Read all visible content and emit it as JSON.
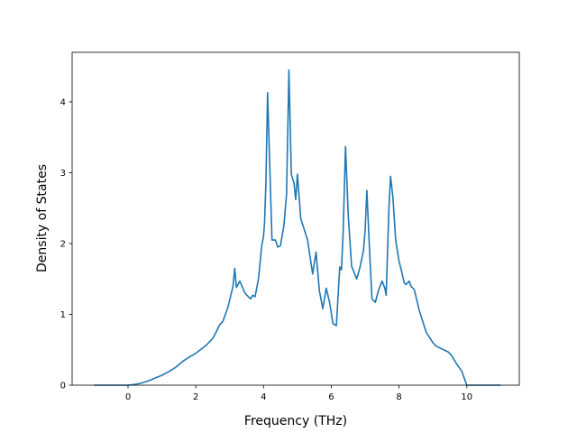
{
  "chart_data": {
    "type": "line",
    "xlabel": "Frequency (THz)",
    "ylabel": "Density of States",
    "xlim": [
      -1.65,
      11.55
    ],
    "ylim": [
      0,
      4.7
    ],
    "xticks": [
      0,
      2,
      4,
      6,
      8,
      10
    ],
    "yticks": [
      0,
      1,
      2,
      3,
      4
    ],
    "grid": false,
    "line_color": "#1f77b4",
    "series": [
      {
        "x": [
          -1.0,
          -0.5,
          0.0,
          0.2,
          0.4,
          0.6,
          0.8,
          1.0,
          1.2,
          1.4,
          1.6,
          1.75,
          2.0,
          2.3,
          2.5,
          2.6,
          2.7,
          2.8,
          2.95,
          3.05,
          3.1,
          3.15,
          3.2,
          3.3,
          3.45,
          3.55,
          3.62,
          3.68,
          3.75,
          3.85,
          3.95,
          4.0,
          4.03,
          4.07,
          4.12,
          4.25,
          4.35,
          4.42,
          4.5,
          4.6,
          4.68,
          4.75,
          4.82,
          4.9,
          4.95,
          5.0,
          5.1,
          5.3,
          5.45,
          5.55,
          5.65,
          5.75,
          5.85,
          5.95,
          6.05,
          6.15,
          6.25,
          6.3,
          6.35,
          6.42,
          6.5,
          6.6,
          6.75,
          6.85,
          6.95,
          7.0,
          7.05,
          7.12,
          7.2,
          7.3,
          7.4,
          7.5,
          7.58,
          7.62,
          7.7,
          7.75,
          7.82,
          7.9,
          8.0,
          8.08,
          8.15,
          8.2,
          8.3,
          8.35,
          8.45,
          8.6,
          8.8,
          9.0,
          9.1,
          9.45,
          9.55,
          9.7,
          9.85,
          10.0,
          10.1,
          11.0
        ],
        "y": [
          0.0,
          0.0,
          0.0,
          0.01,
          0.03,
          0.06,
          0.1,
          0.14,
          0.19,
          0.25,
          0.33,
          0.38,
          0.45,
          0.56,
          0.66,
          0.75,
          0.85,
          0.9,
          1.1,
          1.3,
          1.4,
          1.65,
          1.38,
          1.47,
          1.3,
          1.25,
          1.22,
          1.27,
          1.25,
          1.5,
          1.98,
          2.1,
          2.3,
          2.85,
          4.13,
          2.05,
          2.05,
          1.95,
          1.97,
          2.25,
          2.7,
          4.45,
          2.98,
          2.85,
          2.62,
          2.98,
          2.35,
          2.05,
          1.57,
          1.88,
          1.33,
          1.08,
          1.37,
          1.17,
          0.87,
          0.84,
          1.67,
          1.63,
          2.15,
          3.37,
          2.4,
          1.68,
          1.5,
          1.67,
          1.9,
          2.2,
          2.75,
          2.0,
          1.22,
          1.17,
          1.35,
          1.47,
          1.37,
          1.27,
          2.48,
          2.95,
          2.65,
          2.05,
          1.75,
          1.6,
          1.45,
          1.42,
          1.47,
          1.4,
          1.35,
          1.05,
          0.75,
          0.6,
          0.55,
          0.47,
          0.42,
          0.3,
          0.2,
          0.0,
          0.0,
          0.0
        ]
      }
    ]
  }
}
